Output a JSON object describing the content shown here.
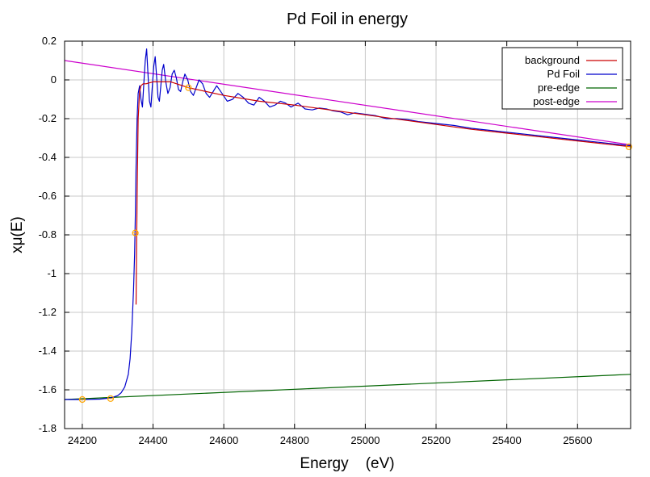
{
  "chart_data": {
    "type": "line",
    "title": "Pd Foil in energy",
    "xlabel": "Energy    (eV)",
    "ylabel": "xμ(E)",
    "xlim": [
      24150,
      25750
    ],
    "ylim": [
      -1.8,
      0.2
    ],
    "xticks": [
      24200,
      24400,
      24600,
      24800,
      25000,
      25200,
      25400,
      25600
    ],
    "yticks": [
      -1.8,
      -1.6,
      -1.4,
      -1.2,
      -1,
      -0.8,
      -0.6,
      -0.4,
      -0.2,
      0,
      0.2
    ],
    "grid": true,
    "legend_position": "top-right",
    "series": [
      {
        "name": "background",
        "color": "#cc0000",
        "x": [
          24352,
          24355,
          24358,
          24362,
          24366,
          24372,
          24380,
          24400,
          24450,
          24500,
          24600,
          24700,
          24800,
          24900,
          25000,
          25100,
          25200,
          25300,
          25400,
          25500,
          25600,
          25750
        ],
        "y": [
          -1.16,
          -0.6,
          -0.2,
          -0.06,
          -0.03,
          -0.02,
          -0.02,
          -0.01,
          -0.01,
          -0.04,
          -0.08,
          -0.11,
          -0.13,
          -0.155,
          -0.18,
          -0.205,
          -0.23,
          -0.255,
          -0.275,
          -0.295,
          -0.315,
          -0.345
        ]
      },
      {
        "name": "Pd Foil",
        "color": "#0000cc",
        "x": [
          24150,
          24200,
          24250,
          24280,
          24300,
          24310,
          24320,
          24330,
          24335,
          24340,
          24345,
          24348,
          24350,
          24352,
          24355,
          24358,
          24362,
          24366,
          24370,
          24374,
          24378,
          24382,
          24386,
          24390,
          24394,
          24398,
          24402,
          24406,
          24410,
          24414,
          24418,
          24422,
          24426,
          24430,
          24436,
          24442,
          24448,
          24454,
          24460,
          24466,
          24472,
          24478,
          24484,
          24490,
          24498,
          24506,
          24514,
          24522,
          24530,
          24540,
          24550,
          24560,
          24570,
          24580,
          24595,
          24610,
          24625,
          24640,
          24655,
          24670,
          24685,
          24700,
          24715,
          24730,
          24745,
          24760,
          24775,
          24790,
          24810,
          24830,
          24850,
          24870,
          24890,
          24910,
          24930,
          24950,
          24970,
          24990,
          25010,
          25030,
          25060,
          25090,
          25120,
          25150,
          25200,
          25250,
          25300,
          25350,
          25400,
          25450,
          25500,
          25550,
          25600,
          25650,
          25700,
          25750
        ],
        "y": [
          -1.65,
          -1.65,
          -1.648,
          -1.642,
          -1.63,
          -1.615,
          -1.585,
          -1.52,
          -1.44,
          -1.3,
          -1.08,
          -0.9,
          -0.7,
          -0.45,
          -0.2,
          -0.07,
          -0.03,
          -0.1,
          -0.14,
          -0.02,
          0.1,
          0.16,
          0.02,
          -0.11,
          -0.14,
          -0.03,
          0.07,
          0.12,
          0.02,
          -0.09,
          -0.11,
          -0.03,
          0.05,
          0.08,
          -0.01,
          -0.07,
          -0.04,
          0.03,
          0.05,
          0.01,
          -0.05,
          -0.06,
          -0.01,
          0.03,
          0.0,
          -0.06,
          -0.08,
          -0.04,
          0.0,
          -0.02,
          -0.07,
          -0.09,
          -0.06,
          -0.03,
          -0.07,
          -0.11,
          -0.1,
          -0.07,
          -0.09,
          -0.12,
          -0.13,
          -0.09,
          -0.11,
          -0.14,
          -0.13,
          -0.11,
          -0.12,
          -0.14,
          -0.12,
          -0.15,
          -0.155,
          -0.145,
          -0.15,
          -0.16,
          -0.165,
          -0.18,
          -0.17,
          -0.175,
          -0.18,
          -0.185,
          -0.2,
          -0.2,
          -0.205,
          -0.215,
          -0.225,
          -0.235,
          -0.25,
          -0.26,
          -0.27,
          -0.28,
          -0.29,
          -0.3,
          -0.31,
          -0.32,
          -0.33,
          -0.34
        ]
      },
      {
        "name": "pre-edge",
        "color": "#006400",
        "x": [
          24150,
          25750
        ],
        "y": [
          -1.65,
          -1.52
        ]
      },
      {
        "name": "post-edge",
        "color": "#cc00cc",
        "x": [
          24150,
          25750
        ],
        "y": [
          0.1,
          -0.335
        ]
      }
    ],
    "markers": {
      "color": "#ffa500",
      "x": [
        24200,
        24280,
        24350,
        24500,
        25745
      ],
      "y": [
        -1.65,
        -1.645,
        -0.79,
        -0.04,
        -0.345
      ]
    }
  }
}
